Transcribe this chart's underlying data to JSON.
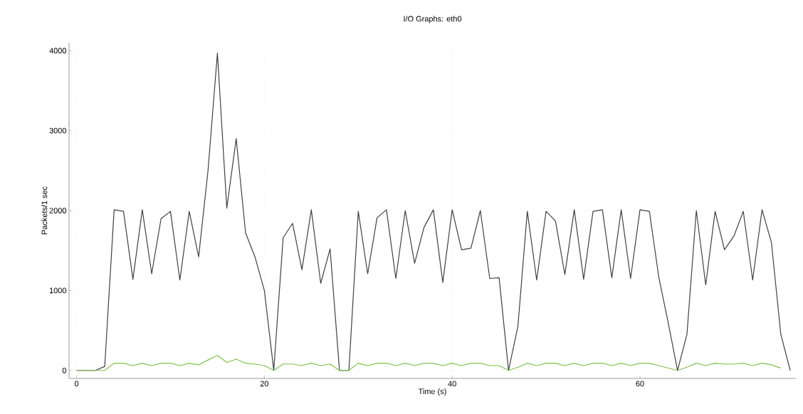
{
  "chart_data": {
    "type": "line",
    "title": "I/O Graphs: eth0",
    "xlabel": "Time (s)",
    "ylabel": "Packets/1 sec",
    "x": [
      0,
      1,
      2,
      3,
      4,
      5,
      6,
      7,
      8,
      9,
      10,
      11,
      12,
      13,
      14,
      15,
      16,
      17,
      18,
      19,
      20,
      21,
      22,
      23,
      24,
      25,
      26,
      27,
      28,
      29,
      30,
      31,
      32,
      33,
      34,
      35,
      36,
      37,
      38,
      39,
      40,
      41,
      42,
      43,
      44,
      45,
      46,
      47,
      48,
      49,
      50,
      51,
      52,
      53,
      54,
      55,
      56,
      57,
      58,
      59,
      60,
      61,
      62,
      63,
      64,
      65,
      66,
      67,
      68,
      69,
      70,
      71,
      72,
      73,
      74,
      75,
      76
    ],
    "series": [
      {
        "color": "#404040",
        "values": [
          0,
          0,
          0,
          50,
          2010,
          1990,
          1140,
          2010,
          1210,
          1900,
          1990,
          1130,
          1990,
          1420,
          2500,
          3970,
          2030,
          2900,
          1720,
          1420,
          1000,
          0,
          1660,
          1840,
          1260,
          2010,
          1090,
          1520,
          0,
          0,
          1990,
          1210,
          1910,
          2010,
          1150,
          2000,
          1340,
          1790,
          2010,
          1100,
          2010,
          1510,
          1530,
          2000,
          1150,
          1160,
          0,
          550,
          1990,
          1130,
          1990,
          1870,
          1200,
          2010,
          1140,
          1990,
          2010,
          1160,
          2010,
          1150,
          2010,
          1990,
          1170,
          600,
          0,
          450,
          2000,
          1070,
          1990,
          1510,
          1680,
          1990,
          1130,
          2010,
          1600,
          450,
          0
        ]
      },
      {
        "color": "#7cc24a",
        "values": [
          0,
          0,
          0,
          0,
          90,
          90,
          60,
          90,
          60,
          90,
          90,
          60,
          90,
          70,
          130,
          190,
          100,
          140,
          90,
          80,
          60,
          0,
          80,
          80,
          60,
          90,
          60,
          80,
          0,
          0,
          90,
          60,
          90,
          90,
          60,
          90,
          60,
          90,
          90,
          60,
          90,
          60,
          90,
          90,
          60,
          60,
          0,
          40,
          90,
          60,
          90,
          90,
          60,
          90,
          60,
          90,
          90,
          60,
          90,
          60,
          90,
          90,
          60,
          30,
          0,
          40,
          90,
          60,
          90,
          80,
          80,
          90,
          60,
          90,
          70,
          30,
          null
        ]
      }
    ],
    "xlim": [
      -0.8,
      76.6
    ],
    "ylim": [
      -100,
      4100
    ],
    "xticks": [
      0,
      20,
      40,
      60
    ],
    "yticks": [
      0,
      1000,
      2000,
      3000,
      4000
    ],
    "grid": true,
    "marker": "none",
    "line_style": "solid"
  }
}
